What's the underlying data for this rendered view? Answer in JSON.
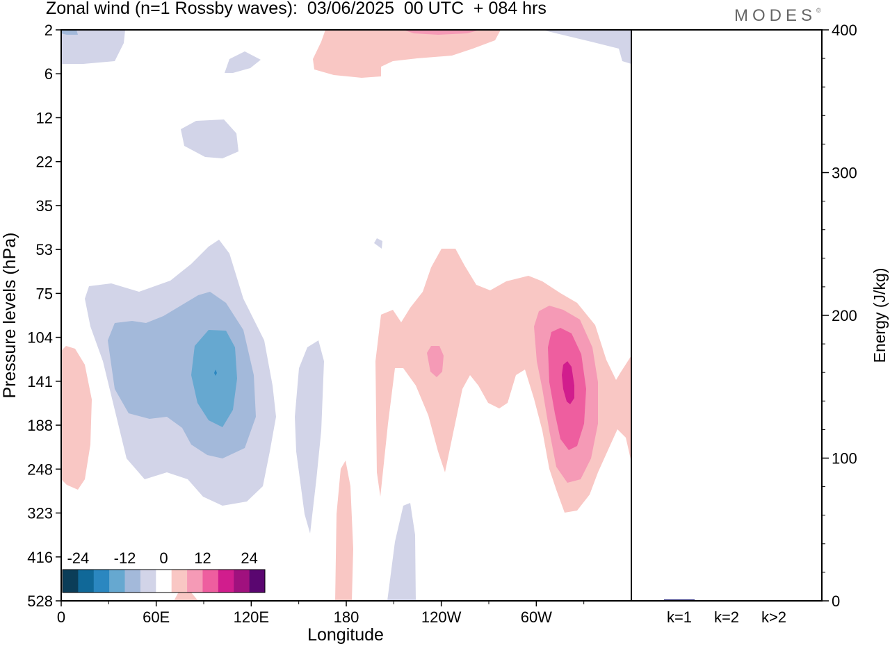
{
  "title": "Zonal wind (n=1 Rossby waves):  03/06/2025  00 UTC  + 084 hrs",
  "brand": "MODES",
  "brand_mark": "©",
  "chart_data": [
    {
      "type": "heatmap",
      "title": "Zonal wind (n=1 Rossby waves):  03/06/2025  00 UTC  + 084 hrs",
      "xlabel": "Longitude",
      "ylabel": "Pressure levels (hPa)",
      "x_ticks": [
        "0",
        "60E",
        "120E",
        "180",
        "120W",
        "60W"
      ],
      "x_tick_degrees": [
        0,
        60,
        120,
        180,
        240,
        300
      ],
      "xlim_degrees_east": [
        0,
        360
      ],
      "y_ticks": [
        "2",
        "6",
        "12",
        "22",
        "35",
        "53",
        "75",
        "104",
        "141",
        "188",
        "248",
        "323",
        "416",
        "528"
      ],
      "y_order": "top-to-bottom",
      "colorbar": {
        "tick_labels": [
          "-24",
          "-12",
          "0",
          "12",
          "24"
        ],
        "levels": [
          -28,
          -24,
          -20,
          -16,
          -12,
          -8,
          -4,
          4,
          8,
          12,
          16,
          20,
          24,
          28
        ],
        "colors": [
          "#0b3d58",
          "#106898",
          "#2b87c0",
          "#66a8d0",
          "#a3b9da",
          "#d2d4e8",
          "#ffffff",
          "#f9c7c4",
          "#f59ab6",
          "#ee5e9f",
          "#d11d8d",
          "#a0117e",
          "#5a0670"
        ]
      },
      "features": [
        {
          "sign": "negative",
          "longitude": 97,
          "pressure_hpa": 141,
          "peak_ms": -20
        },
        {
          "sign": "positive",
          "longitude": 322,
          "pressure_hpa": 141,
          "peak_ms": 20
        },
        {
          "sign": "positive",
          "longitude": 236,
          "pressure_hpa": 120,
          "peak_ms": 8
        }
      ]
    },
    {
      "type": "bar",
      "ylabel": "Energy (J/kg)",
      "categories": [
        "k=1",
        "k=2",
        "k>2"
      ],
      "values": [
        1,
        0,
        0.5
      ],
      "ylim": [
        0,
        400
      ],
      "y_ticks": [
        "0",
        "100",
        "200",
        "300",
        "400"
      ],
      "bar_color": "#1a1a6e"
    }
  ]
}
